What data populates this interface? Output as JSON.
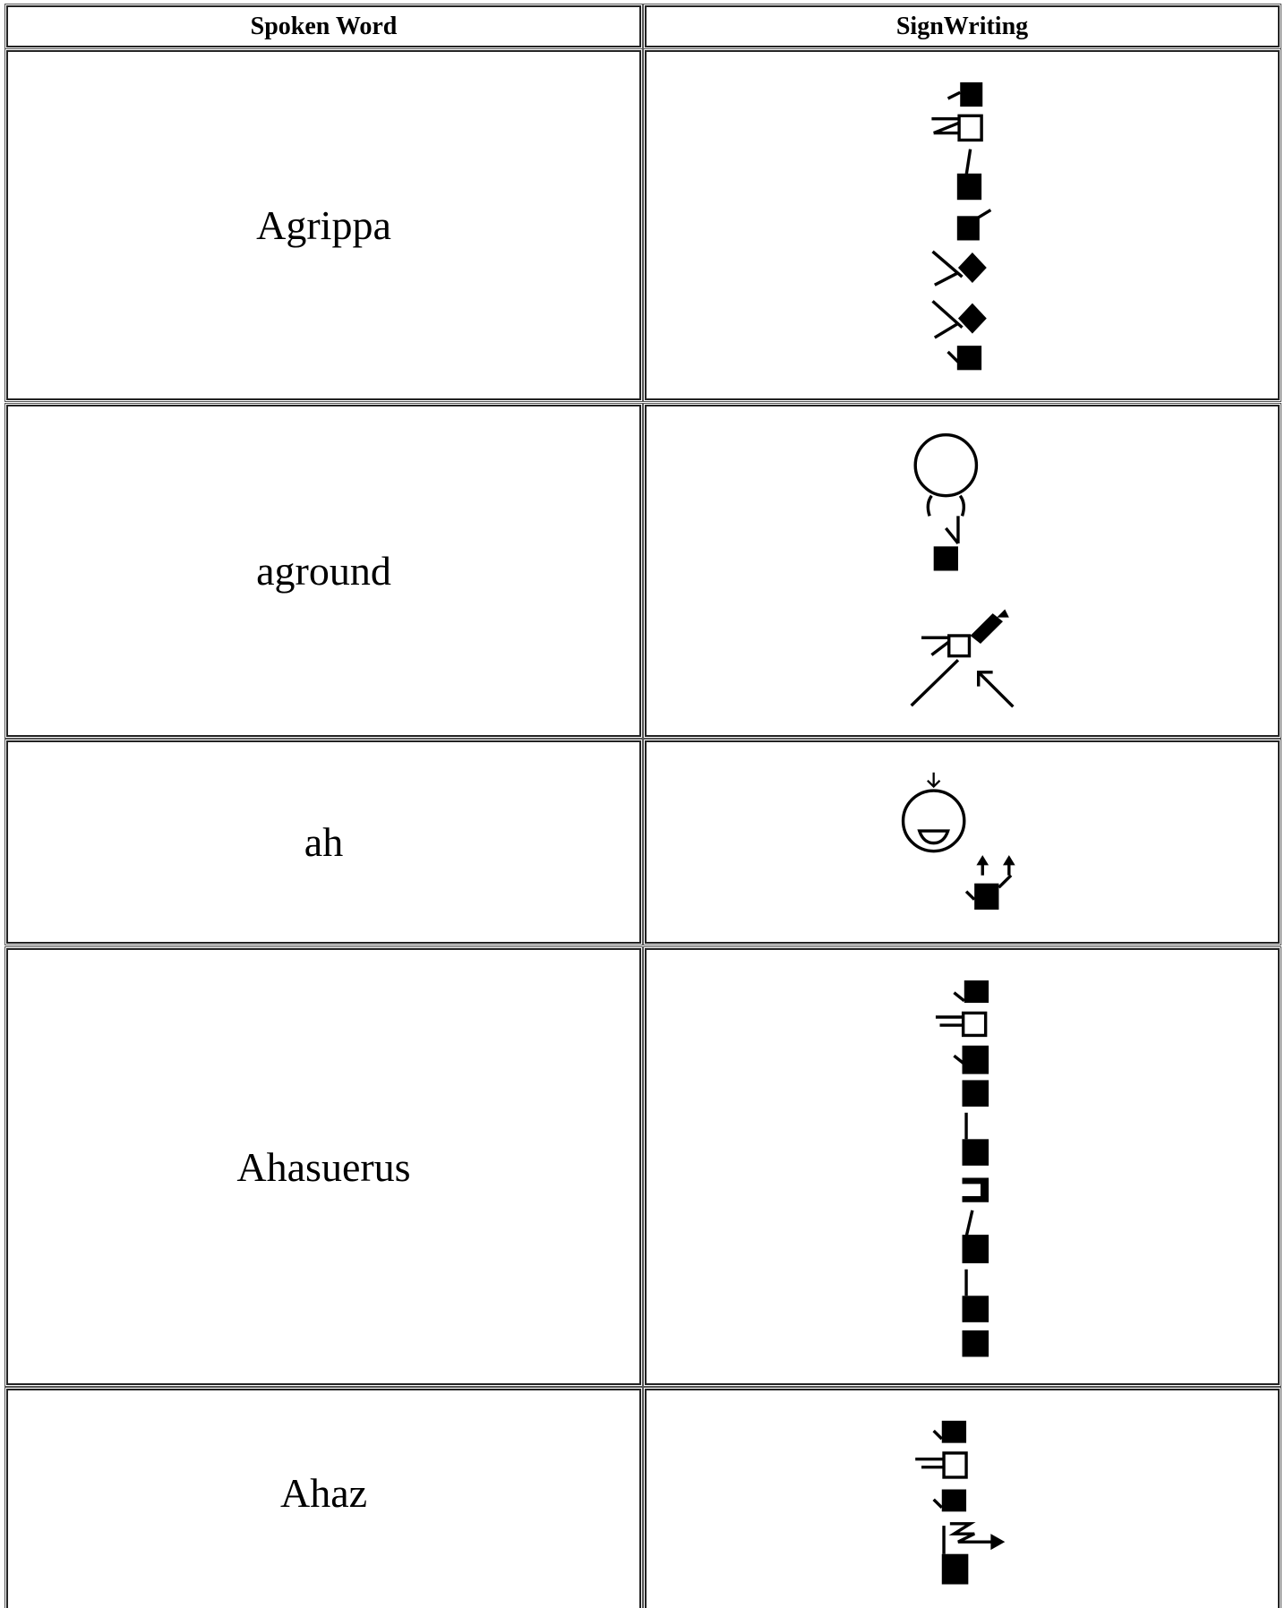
{
  "table": {
    "headers": [
      "Spoken Word",
      "SignWriting"
    ],
    "rows": [
      [
        "Agrippa"
      ],
      [
        "aground"
      ],
      [
        "ah"
      ],
      [
        "Ahasuerus"
      ],
      [
        "Ahaz"
      ]
    ]
  }
}
